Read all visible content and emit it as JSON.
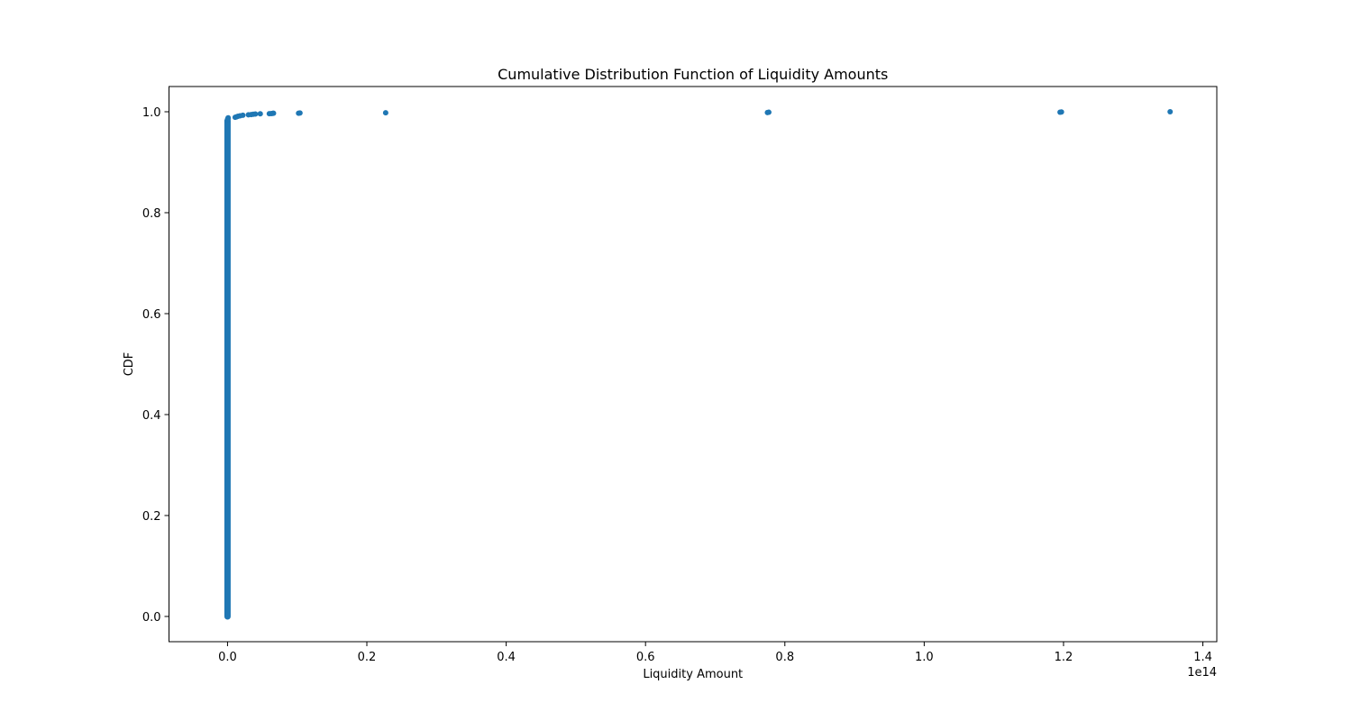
{
  "chart_data": {
    "type": "scatter",
    "title": "Cumulative Distribution Function of Liquidity Amounts",
    "xlabel": "Liquidity Amount",
    "ylabel": "CDF",
    "x_offset_text": "1e14",
    "xlim": [
      -8400000000000.0,
      142000000000000.0
    ],
    "ylim": [
      -0.05,
      1.05
    ],
    "x_ticks": [
      0.0,
      20000000000000.0,
      40000000000000.0,
      60000000000000.0,
      80000000000000.0,
      100000000000000.0,
      120000000000000.0,
      140000000000000.0
    ],
    "x_tick_labels": [
      "0.0",
      "0.2",
      "0.4",
      "0.6",
      "0.8",
      "1.0",
      "1.2",
      "1.4"
    ],
    "y_ticks": [
      0.0,
      0.2,
      0.4,
      0.6,
      0.8,
      1.0
    ],
    "y_tick_labels": [
      "0.0",
      "0.2",
      "0.4",
      "0.6",
      "0.8",
      "1.0"
    ],
    "grid": false,
    "legend": "none",
    "marker_color": "#1f77b4",
    "column_segment": {
      "x": 0.0,
      "y_from": 0.0,
      "y_to": 0.982
    },
    "series": [
      {
        "x": [
          5000000000.0,
          10000000000.0,
          20000000000.0,
          30000000000.0,
          40000000000.0,
          50000000000.0,
          70000000000.0,
          90000000000.0,
          1100000000000.0,
          1300000000000.0,
          1500000000000.0,
          1800000000000.0,
          2200000000000.0,
          3000000000000.0,
          3400000000000.0,
          3700000000000.0,
          4000000000000.0,
          4700000000000.0,
          6000000000000.0,
          6300000000000.0,
          6500000000000.0,
          6600000000000.0,
          10200000000000.0,
          10400000000000.0,
          22700000000000.0,
          77500000000000.0,
          77700000000000.0,
          119500000000000.0,
          119700000000000.0,
          135300000000000.0
        ],
        "y": [
          0.982,
          0.983,
          0.984,
          0.985,
          0.9855,
          0.986,
          0.987,
          0.988,
          0.989,
          0.99,
          0.991,
          0.992,
          0.993,
          0.994,
          0.9945,
          0.995,
          0.9955,
          0.996,
          0.9962,
          0.9965,
          0.9968,
          0.997,
          0.9972,
          0.9975,
          0.998,
          0.9985,
          0.999,
          0.9992,
          0.9995,
          1.0
        ]
      }
    ]
  }
}
